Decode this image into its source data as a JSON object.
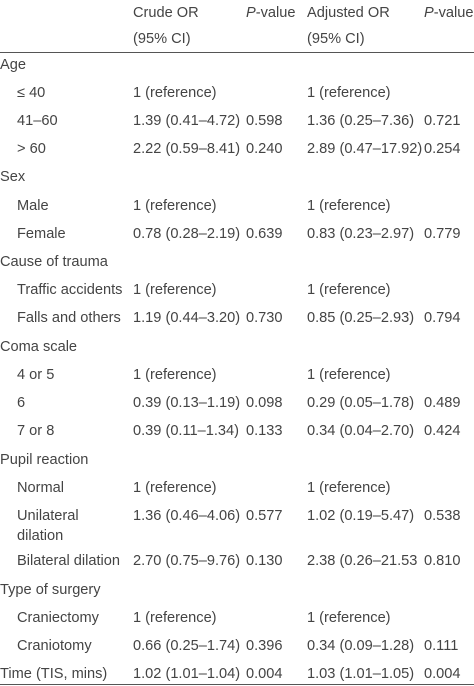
{
  "header": {
    "col1_line1": "Crude OR",
    "col1_line2": "(95% CI)",
    "col2_italic": "P",
    "col2_rest": "-value",
    "col3_line1": "Adjusted OR",
    "col3_line2": "(95% CI)",
    "col4_italic": "P",
    "col4_rest": "-value"
  },
  "rows": [
    {
      "label": "Age",
      "type": "section"
    },
    {
      "label": "≤ 40",
      "type": "sub",
      "crude": "1 (reference)",
      "p1": "",
      "adj": "1 (reference)",
      "p2": ""
    },
    {
      "label": "41–60",
      "type": "sub",
      "crude": "1.39 (0.41–4.72)",
      "p1": "0.598",
      "adj": "1.36 (0.25–7.36)",
      "p2": "0.721"
    },
    {
      "label": "> 60",
      "type": "sub",
      "crude": "2.22 (0.59–8.41)",
      "p1": "0.240",
      "adj": "2.89 (0.47–17.92)",
      "p2": "0.254"
    },
    {
      "label": "Sex",
      "type": "section"
    },
    {
      "label": "Male",
      "type": "sub",
      "crude": "1 (reference)",
      "p1": "",
      "adj": "1 (reference)",
      "p2": ""
    },
    {
      "label": "Female",
      "type": "sub",
      "crude": "0.78 (0.28–2.19)",
      "p1": "0.639",
      "adj": "0.83 (0.23–2.97)",
      "p2": "0.779"
    },
    {
      "label": "Cause of trauma",
      "type": "section"
    },
    {
      "label": "Traffic accidents",
      "type": "sub",
      "crude": "1 (reference)",
      "p1": "",
      "adj": "1 (reference)",
      "p2": ""
    },
    {
      "label": "Falls and others",
      "type": "sub",
      "crude": "1.19 (0.44–3.20)",
      "p1": "0.730",
      "adj": "0.85 (0.25–2.93)",
      "p2": "0.794"
    },
    {
      "label": "Coma scale",
      "type": "section"
    },
    {
      "label": "4 or 5",
      "type": "sub",
      "crude": "1 (reference)",
      "p1": "",
      "adj": "1 (reference)",
      "p2": ""
    },
    {
      "label": "6",
      "type": "sub",
      "crude": "0.39 (0.13–1.19)",
      "p1": "0.098",
      "adj": "0.29 (0.05–1.78)",
      "p2": "0.489"
    },
    {
      "label": "7 or 8",
      "type": "sub",
      "crude": "0.39 (0.11–1.34)",
      "p1": "0.133",
      "adj": "0.34 (0.04–2.70)",
      "p2": "0.424"
    },
    {
      "label": "Pupil reaction",
      "type": "section"
    },
    {
      "label": "Normal",
      "type": "sub",
      "crude": "1 (reference)",
      "p1": "",
      "adj": "1 (reference)",
      "p2": ""
    },
    {
      "label": "Unilateral",
      "label2": "dilation",
      "type": "sub2",
      "crude": "1.36 (0.46–4.06)",
      "p1": "0.577",
      "adj": "1.02 (0.19–5.47)",
      "p2": "0.538"
    },
    {
      "label": "Bilateral dilation",
      "type": "sub",
      "crude": "2.70 (0.75–9.76)",
      "p1": "0.130",
      "adj": "2.38 (0.26–21.53",
      "p2": "0.810"
    },
    {
      "label": "Type of surgery",
      "type": "section"
    },
    {
      "label": "Craniectomy",
      "type": "sub",
      "crude": "1 (reference)",
      "p1": "",
      "adj": "1 (reference)",
      "p2": ""
    },
    {
      "label": "Craniotomy",
      "type": "sub",
      "crude": "0.66 (0.25–1.74)",
      "p1": "0.396",
      "adj": "0.34 (0.09–1.28)",
      "p2": "0.111"
    },
    {
      "label": "Time (TIS, mins)",
      "type": "full",
      "crude": "1.02 (1.01–1.04)",
      "p1": "0.004",
      "adj": "1.03 (1.01–1.05)",
      "p2": "0.004"
    }
  ]
}
